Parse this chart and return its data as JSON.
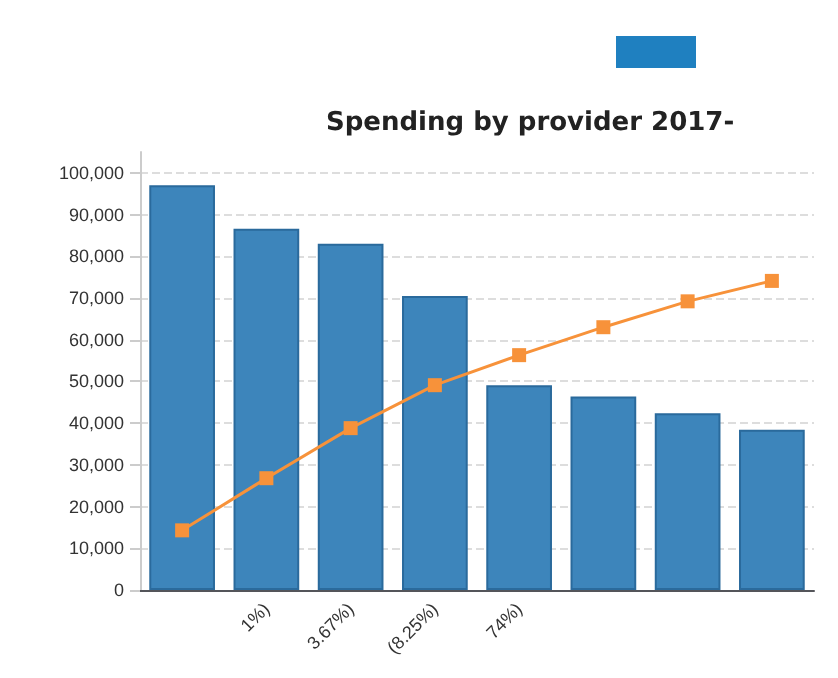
{
  "chart_data": {
    "type": "bar",
    "title": "Spending by provider 2017-",
    "categories": [
      null,
      "1%)",
      "3.67%)",
      "(8.25%)",
      "74%)",
      null,
      null,
      null
    ],
    "series": [
      {
        "color": "#3d85bb",
        "values": [
          97000,
          86600,
          83000,
          70500,
          49100,
          46400,
          42400,
          38400
        ]
      },
      {
        "type": "line",
        "color": "#f7923a",
        "marker": "square",
        "values": [
          14300,
          26800,
          38800,
          49100,
          56300,
          63000,
          69200,
          74100
        ]
      }
    ],
    "ylim": [
      0,
      105000
    ],
    "yticks": [
      0,
      {
        "value": 10000,
        "label": "10,000"
      },
      {
        "value": 20000,
        "label": "20,000"
      },
      {
        "value": 30000,
        "label": "30,000"
      },
      {
        "value": 40000,
        "label": "40,000"
      },
      {
        "value": 50000,
        "label": "50,000"
      },
      {
        "value": 60000,
        "label": "60,000"
      },
      {
        "value": 70000,
        "label": "70,000"
      },
      {
        "value": 80000,
        "label": "80,000"
      },
      {
        "value": 90000,
        "label": "90,000"
      },
      {
        "value": 100000,
        "label": "100,000"
      }
    ],
    "grid": "y"
  }
}
